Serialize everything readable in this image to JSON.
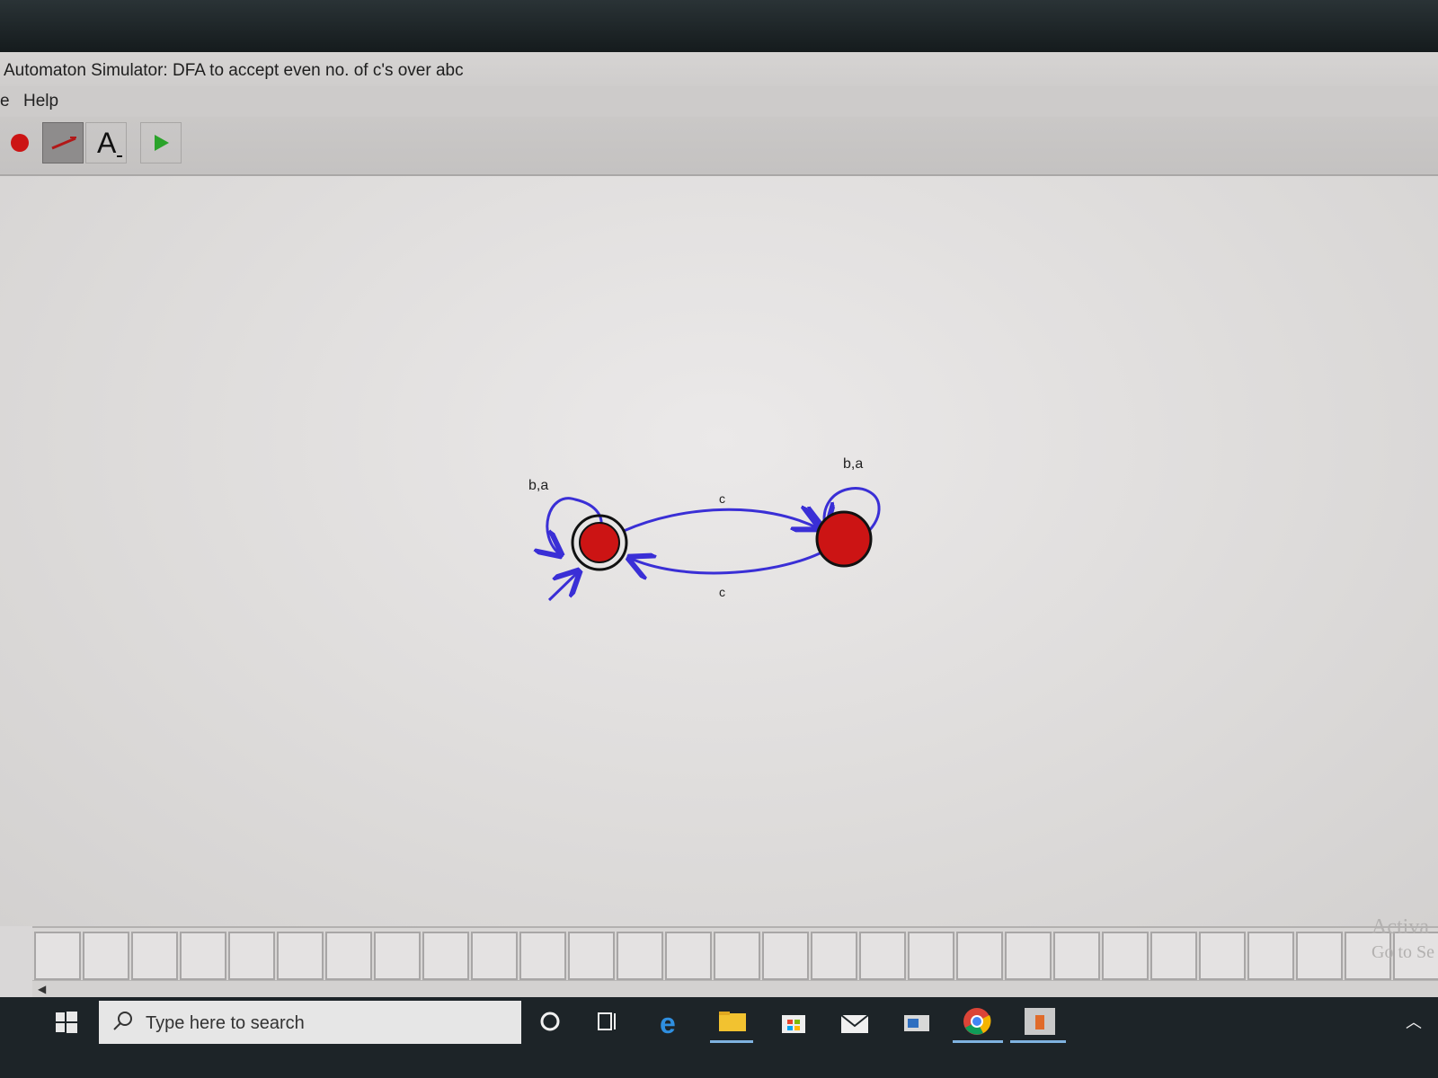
{
  "window": {
    "title": "Automaton Simulator: DFA to accept even no. of c's over abc"
  },
  "menu": {
    "items": [
      "e",
      "Help"
    ]
  },
  "toolbar": {
    "tools": [
      {
        "name": "state-tool",
        "icon": "red-circle-icon",
        "selected": false
      },
      {
        "name": "transition-tool",
        "icon": "arrow-line-icon",
        "selected": true
      },
      {
        "name": "label-tool",
        "icon": "letter-a-icon",
        "label": "A",
        "selected": false
      },
      {
        "name": "run-tool",
        "icon": "green-play-icon",
        "selected": false
      }
    ],
    "colors": {
      "state": "#cc1414",
      "run": "#2aa32a"
    }
  },
  "diagram": {
    "states": [
      {
        "id": "q0",
        "start": true,
        "accepting": true,
        "color": "#cc1414"
      },
      {
        "id": "q1",
        "start": false,
        "accepting": false,
        "color": "#cc1414"
      }
    ],
    "transitions": [
      {
        "from": "q0",
        "to": "q0",
        "label": "b,a"
      },
      {
        "from": "q1",
        "to": "q1",
        "label": "b,a"
      },
      {
        "from": "q0",
        "to": "q1",
        "label": "c"
      },
      {
        "from": "q1",
        "to": "q0",
        "label": "c"
      }
    ],
    "edge_color": "#3a2fd6"
  },
  "tape": {
    "cell_count": 29,
    "values": []
  },
  "watermark": {
    "line1": "Activa",
    "line2": "Go to Se"
  },
  "taskbar": {
    "search_placeholder": "Type here to search",
    "apps": [
      "cortana-icon",
      "task-view-icon",
      "edge-icon",
      "file-explorer-icon",
      "store-icon",
      "mail-icon",
      "app-window-icon",
      "chrome-icon",
      "java-app-icon"
    ]
  }
}
